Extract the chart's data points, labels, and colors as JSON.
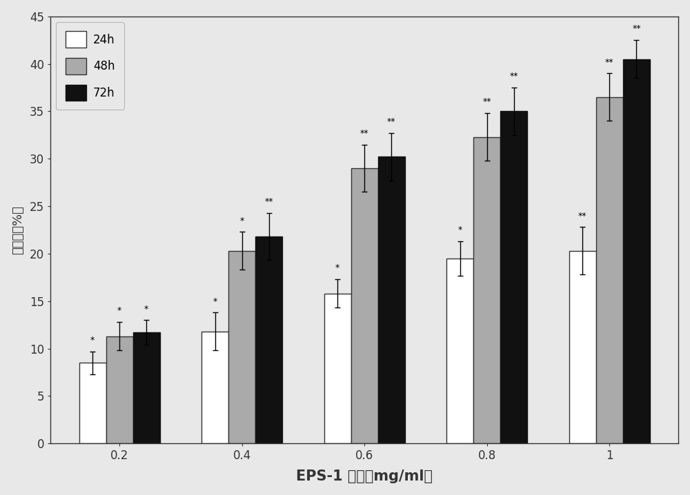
{
  "categories": [
    "0.2",
    "0.4",
    "0.6",
    "0.8",
    "1"
  ],
  "series": {
    "24h": {
      "values": [
        8.5,
        11.8,
        15.8,
        19.5,
        20.3
      ],
      "errors": [
        1.2,
        2.0,
        1.5,
        1.8,
        2.5
      ],
      "color": "#ffffff",
      "edgecolor": "#333333",
      "label": "24h",
      "sig": [
        "*",
        "*",
        "*",
        "*",
        "**"
      ]
    },
    "48h": {
      "values": [
        11.3,
        20.3,
        29.0,
        32.3,
        36.5
      ],
      "errors": [
        1.5,
        2.0,
        2.5,
        2.5,
        2.5
      ],
      "color": "#aaaaaa",
      "edgecolor": "#333333",
      "label": "48h",
      "sig": [
        "*",
        "*",
        "**",
        "**",
        "**"
      ]
    },
    "72h": {
      "values": [
        11.7,
        21.8,
        30.2,
        35.0,
        40.5
      ],
      "errors": [
        1.3,
        2.5,
        2.5,
        2.5,
        2.0
      ],
      "color": "#111111",
      "edgecolor": "#111111",
      "label": "72h",
      "sig": [
        "*",
        "**",
        "**",
        "**",
        "**"
      ]
    }
  },
  "xlabel_ascii": "EPS-1",
  "xlabel_cn": "浓度（mg/ml）",
  "ylabel_cn": "抑制率（%）",
  "ylim": [
    0,
    45
  ],
  "yticks": [
    0,
    5,
    10,
    15,
    20,
    25,
    30,
    35,
    40,
    45
  ],
  "bar_width": 0.22,
  "background_color": "#e8e8e8",
  "plot_bg_color": "#e8e8e8",
  "xlabel_fontsize": 15,
  "ylabel_fontsize": 13,
  "tick_fontsize": 12,
  "legend_fontsize": 12,
  "sig_fontsize": 9
}
